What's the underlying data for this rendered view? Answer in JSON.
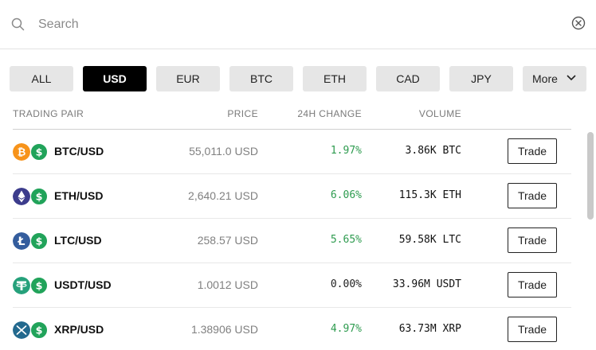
{
  "search": {
    "placeholder": "Search"
  },
  "filters": {
    "chips": [
      "ALL",
      "USD",
      "EUR",
      "BTC",
      "ETH",
      "CAD",
      "JPY"
    ],
    "active": "USD",
    "more_label": "More"
  },
  "table": {
    "headers": {
      "pair": "TRADING PAIR",
      "price": "PRICE",
      "change": "24H CHANGE",
      "volume": "VOLUME"
    },
    "trade_label": "Trade",
    "rows": [
      {
        "pair": "BTC/USD",
        "price": "55,011.0 USD",
        "change": "1.97%",
        "volume": "3.86K BTC",
        "icon": "bitcoin-icon",
        "color": "#f7931a"
      },
      {
        "pair": "ETH/USD",
        "price": "2,640.21 USD",
        "change": "6.06%",
        "volume": "115.3K ETH",
        "icon": "ethereum-icon",
        "color": "#3c3c8c"
      },
      {
        "pair": "LTC/USD",
        "price": "258.57 USD",
        "change": "5.65%",
        "volume": "59.58K LTC",
        "icon": "litecoin-icon",
        "color": "#345d9d"
      },
      {
        "pair": "USDT/USD",
        "price": "1.0012 USD",
        "change": "0.00%",
        "volume": "33.96M USDT",
        "icon": "tether-icon",
        "color": "#26a17b"
      },
      {
        "pair": "XRP/USD",
        "price": "1.38906 USD",
        "change": "4.97%",
        "volume": "63.73M XRP",
        "icon": "xrp-icon",
        "color": "#23698e"
      }
    ]
  },
  "colors": {
    "positive": "#2e9b4f",
    "usd": "#21a35a",
    "active_chip": "#000000",
    "chip": "#e6e6e6"
  }
}
